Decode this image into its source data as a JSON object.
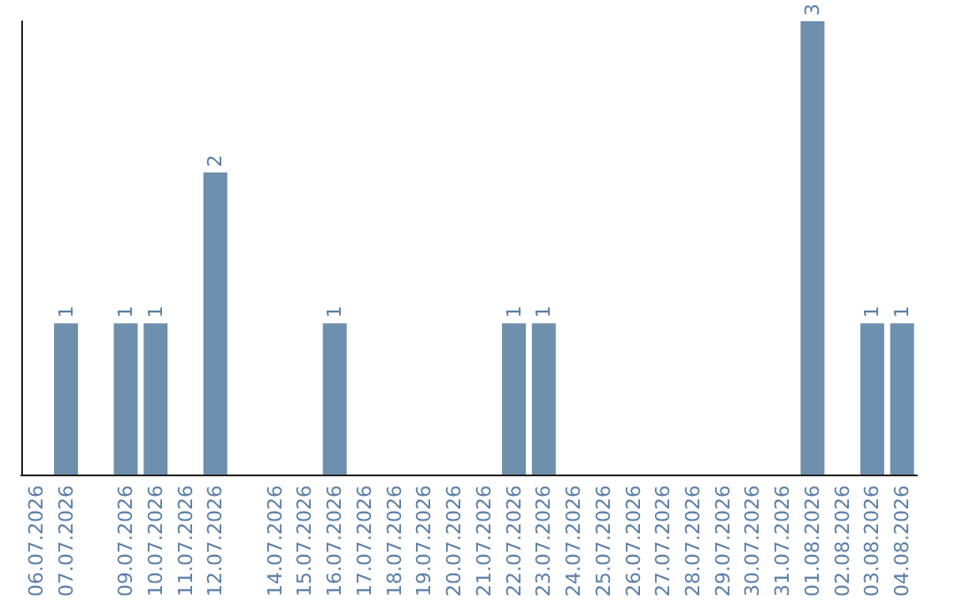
{
  "chart_data": {
    "type": "bar",
    "categories": [
      "06.07.2026",
      "07.07.2026",
      null,
      "09.07.2026",
      "10.07.2026",
      "11.07.2026",
      "12.07.2026",
      null,
      "14.07.2026",
      "15.07.2026",
      "16.07.2026",
      "17.07.2026",
      "18.07.2026",
      "19.07.2026",
      "20.07.2026",
      "21.07.2026",
      "22.07.2026",
      "23.07.2026",
      "24.07.2026",
      "25.07.2026",
      "26.07.2026",
      "27.07.2026",
      "28.07.2026",
      "29.07.2026",
      "30.07.2026",
      "31.07.2026",
      "01.08.2026",
      "02.08.2026",
      "03.08.2026",
      "04.08.2026"
    ],
    "values": [
      0,
      1,
      0,
      1,
      1,
      0,
      2,
      0,
      0,
      0,
      1,
      0,
      0,
      0,
      0,
      0,
      1,
      1,
      0,
      0,
      0,
      0,
      0,
      0,
      0,
      0,
      3,
      0,
      1,
      1
    ],
    "color": "#6e8fad",
    "value_labels": [
      null,
      "1",
      null,
      "1",
      "1",
      null,
      "2",
      null,
      null,
      null,
      "1",
      null,
      null,
      null,
      null,
      null,
      "1",
      "1",
      null,
      null,
      null,
      null,
      null,
      null,
      null,
      null,
      "3",
      null,
      "1",
      "1"
    ],
    "tick_labels": "x",
    "grid": false
  }
}
